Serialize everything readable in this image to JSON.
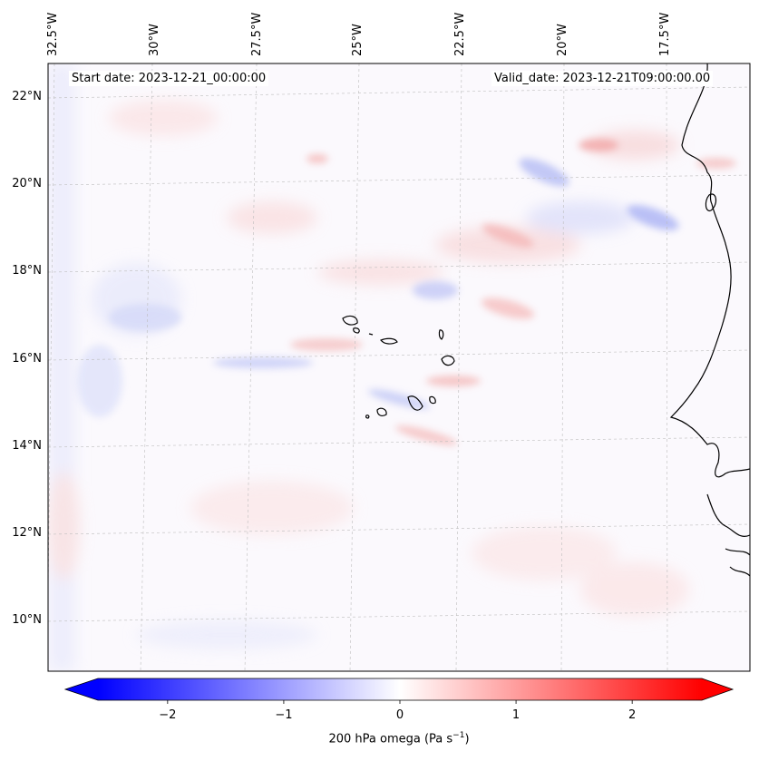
{
  "map": {
    "start_label": "Start date: 2023-12-21_00:00:00",
    "valid_label": "Valid_date: 2023-12-21T09:00:00.00",
    "longitude_labels": [
      "32.5°W",
      "30°W",
      "27.5°W",
      "25°W",
      "22.5°W",
      "20°W",
      "17.5°W"
    ],
    "latitude_labels": [
      "22°N",
      "20°N",
      "18°N",
      "16°N",
      "14°N",
      "12°N",
      "10°N"
    ],
    "extent": {
      "lon_min": -33.0,
      "lon_max": -15.5,
      "lat_min": 9.0,
      "lat_max": 22.7
    },
    "field": "200 hPa omega",
    "colormap": "bwr"
  },
  "colorbar": {
    "label_main": "200 hPa omega (Pa s",
    "label_exp": "−1",
    "label_end": ")",
    "ticks": [
      "−2",
      "−1",
      "0",
      "1",
      "2"
    ],
    "range": [
      -2.6,
      2.6
    ],
    "tick_values": [
      -2,
      -1,
      0,
      1,
      2
    ],
    "low_color": "#0000ff",
    "mid_color": "#ffffff",
    "high_color": "#ff0000"
  }
}
